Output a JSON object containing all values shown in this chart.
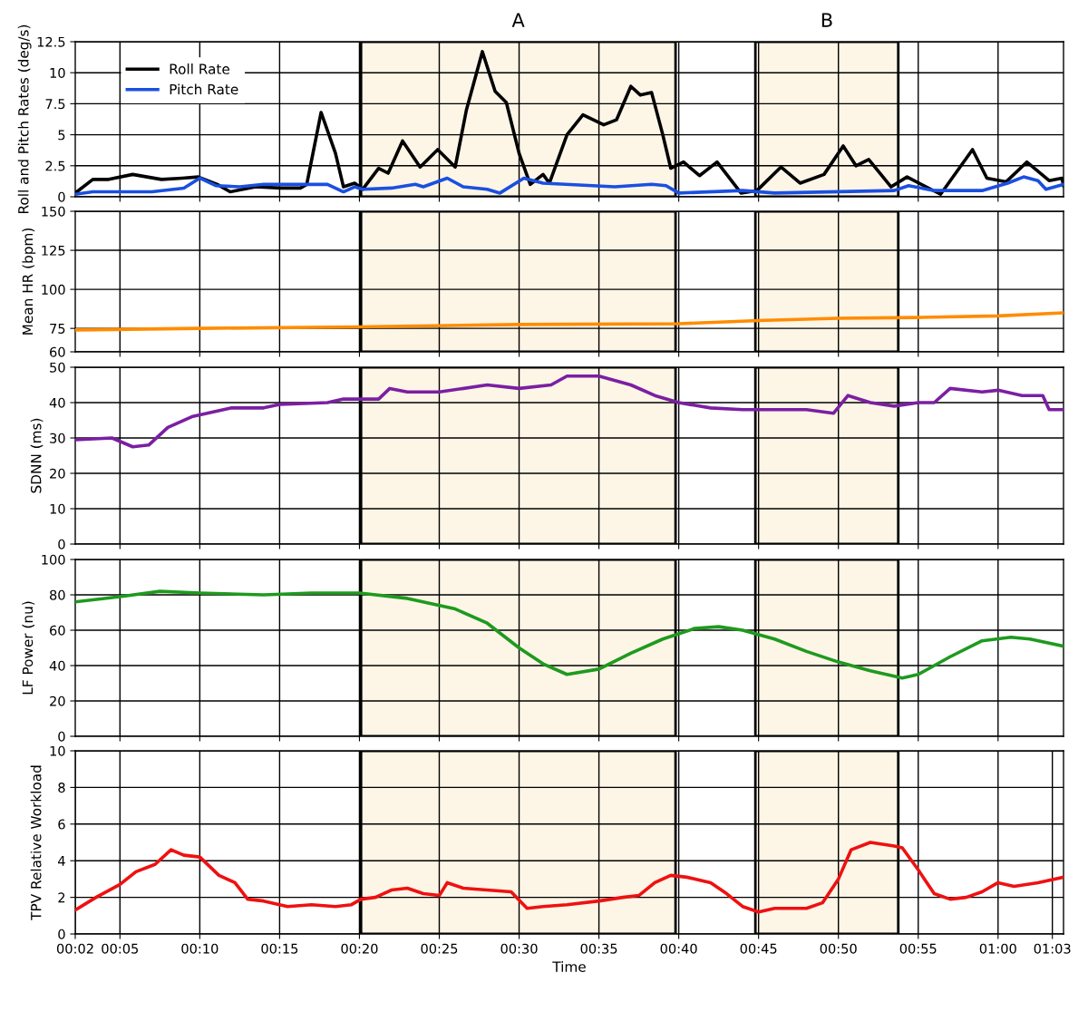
{
  "chart_data": [
    {
      "type": "line",
      "ylabel": "Roll and Pitch Rates (deg/s)",
      "xlim": [
        2.2,
        64.1
      ],
      "xticks": [
        5,
        10,
        15,
        20,
        25,
        30,
        35,
        40,
        45,
        50,
        55,
        60
      ],
      "ylim": [
        0,
        12.5
      ],
      "yticks": [
        0,
        2.5,
        5,
        7.5,
        10,
        12.5
      ],
      "tick_labels": "y",
      "grid": true,
      "legend": "top left",
      "line_style": "solid",
      "marker": "none",
      "bands": [
        {
          "axis": "x",
          "from": 20.1,
          "to": 39.8,
          "label": "A",
          "color": "#fdf5e6"
        },
        {
          "axis": "x",
          "from": 44.8,
          "to": 53.75,
          "label": "B",
          "color": "#fdf5e6"
        }
      ],
      "series": [
        {
          "name": "Roll Rate",
          "color": "#000000",
          "x": [
            2.2,
            3.3,
            4.3,
            5.8,
            7.6,
            8.9,
            9.9,
            11.1,
            11.9,
            13.5,
            15.1,
            16.3,
            16.7,
            17.6,
            18.5,
            19.0,
            19.7,
            20.2,
            21.2,
            21.8,
            22.7,
            23.8,
            24.9,
            26.0,
            26.7,
            27.7,
            28.5,
            29.2,
            30.0,
            30.7,
            31.5,
            31.9,
            33.0,
            34.0,
            35.3,
            36.1,
            37.0,
            37.6,
            38.3,
            39.0,
            39.5,
            40.3,
            41.3,
            42.4,
            43.9,
            44.9,
            46.4,
            47.6,
            49.1,
            50.3,
            51.1,
            51.9,
            53.3,
            54.3,
            56.4,
            58.4,
            59.3,
            60.5,
            61.8,
            63.2,
            64.0,
            64.1
          ],
          "values": [
            0.3,
            1.4,
            1.4,
            1.8,
            1.4,
            1.5,
            1.6,
            1.0,
            0.4,
            0.8,
            0.7,
            0.7,
            1.0,
            6.8,
            3.5,
            0.8,
            1.1,
            0.6,
            2.3,
            1.9,
            4.5,
            2.4,
            3.8,
            2.4,
            7.0,
            11.7,
            8.5,
            7.6,
            3.5,
            1.0,
            1.8,
            1.1,
            5.0,
            6.6,
            5.8,
            6.2,
            8.9,
            8.2,
            8.4,
            5.0,
            2.3,
            2.8,
            1.7,
            2.8,
            0.3,
            0.5,
            2.4,
            1.1,
            1.8,
            4.1,
            2.5,
            3.0,
            0.8,
            1.6,
            0.2,
            3.8,
            1.5,
            1.2,
            2.8,
            1.3,
            1.5,
            0.9
          ]
        },
        {
          "name": "Pitch Rate",
          "color": "#1a4fe0",
          "x": [
            2.2,
            3.3,
            7.0,
            9.0,
            10.0,
            11.0,
            12.5,
            14.0,
            17.0,
            18.0,
            19.0,
            19.7,
            20.2,
            22.0,
            23.5,
            24.0,
            25.5,
            26.5,
            28.0,
            28.8,
            30.3,
            31.5,
            36.0,
            38.3,
            39.2,
            40.0,
            44.0,
            46.0,
            53.5,
            54.4,
            56.0,
            59.0,
            60.6,
            61.6,
            62.5,
            63.0,
            64.1
          ],
          "values": [
            0.2,
            0.4,
            0.4,
            0.7,
            1.5,
            0.9,
            0.8,
            1.0,
            1.0,
            1.0,
            0.4,
            0.8,
            0.6,
            0.7,
            1.0,
            0.8,
            1.5,
            0.8,
            0.6,
            0.3,
            1.5,
            1.1,
            0.8,
            1.0,
            0.9,
            0.3,
            0.5,
            0.3,
            0.5,
            0.9,
            0.5,
            0.5,
            1.1,
            1.6,
            1.3,
            0.6,
            1.0
          ]
        }
      ]
    },
    {
      "type": "line",
      "ylabel": "Mean HR (bpm)",
      "xlim": [
        2.2,
        64.1
      ],
      "xticks": [
        5,
        10,
        15,
        20,
        25,
        30,
        35,
        40,
        45,
        50,
        55,
        60
      ],
      "ylim": [
        60,
        150
      ],
      "yticks": [
        60,
        75,
        100,
        125,
        150
      ],
      "tick_labels": "y",
      "grid": true,
      "line_style": "solid",
      "marker": "none",
      "bands": [
        {
          "axis": "x",
          "from": 20.1,
          "to": 39.8,
          "color": "#fdf5e6"
        },
        {
          "axis": "x",
          "from": 44.8,
          "to": 53.75,
          "color": "#fdf5e6"
        }
      ],
      "series": [
        {
          "color": "#ff8c00",
          "x": [
            2.2,
            10,
            20,
            30,
            40,
            45,
            50,
            55,
            60,
            64.1
          ],
          "values": [
            74,
            75,
            76,
            77.5,
            78,
            80,
            81.5,
            82,
            83,
            85
          ]
        }
      ]
    },
    {
      "type": "line",
      "ylabel": "SDNN (ms)",
      "xlim": [
        2.2,
        64.1
      ],
      "xticks": [
        5,
        10,
        15,
        20,
        25,
        30,
        35,
        40,
        45,
        50,
        55,
        60
      ],
      "ylim": [
        0,
        50
      ],
      "yticks": [
        0,
        10,
        20,
        30,
        40,
        50
      ],
      "tick_labels": "y",
      "grid": true,
      "line_style": "solid",
      "marker": "none",
      "bands": [
        {
          "axis": "x",
          "from": 20.1,
          "to": 39.8,
          "color": "#fdf5e6"
        },
        {
          "axis": "x",
          "from": 44.8,
          "to": 53.75,
          "color": "#fdf5e6"
        }
      ],
      "series": [
        {
          "color": "#7b1fa2",
          "x": [
            2.2,
            4.5,
            5.8,
            6.8,
            8,
            9.5,
            12,
            14,
            15,
            18,
            19,
            20.5,
            21.2,
            21.9,
            23,
            25,
            28,
            30,
            32,
            33,
            35,
            37,
            38.5,
            40,
            42,
            44,
            48,
            49.7,
            50.6,
            52,
            53.5,
            55,
            56,
            57,
            59,
            60,
            61.5,
            62.8,
            63.2,
            64.1
          ],
          "values": [
            29.5,
            30,
            27.5,
            28,
            33,
            36,
            38.5,
            38.5,
            39.5,
            40,
            41,
            41,
            41,
            44,
            43,
            43,
            45,
            44,
            45,
            47.5,
            47.5,
            45,
            42,
            40,
            38.5,
            38,
            38,
            37,
            42,
            40,
            39,
            40,
            40,
            44,
            43,
            43.5,
            42,
            42,
            38,
            38
          ]
        }
      ]
    },
    {
      "type": "line",
      "ylabel": "LF Power (nu)",
      "xlim": [
        2.2,
        64.1
      ],
      "xticks": [
        5,
        10,
        15,
        20,
        25,
        30,
        35,
        40,
        45,
        50,
        55,
        60
      ],
      "ylim": [
        0,
        100
      ],
      "yticks": [
        0,
        20,
        40,
        60,
        80,
        100
      ],
      "tick_labels": "y",
      "grid": true,
      "line_style": "solid",
      "marker": "none",
      "bands": [
        {
          "axis": "x",
          "from": 20.1,
          "to": 39.8,
          "color": "#fdf5e6"
        },
        {
          "axis": "x",
          "from": 44.8,
          "to": 53.75,
          "color": "#fdf5e6"
        }
      ],
      "series": [
        {
          "color": "#1e9a1e",
          "x": [
            2.2,
            5,
            7.5,
            10,
            14,
            17,
            20,
            23,
            26,
            28,
            30,
            31.5,
            33,
            35,
            37,
            39,
            41,
            42.5,
            44,
            46,
            48,
            50,
            52,
            54,
            55,
            57,
            59,
            60.8,
            62,
            64.1
          ],
          "values": [
            76,
            79,
            82,
            81,
            80,
            81,
            81,
            78,
            72,
            64,
            50,
            41,
            35,
            38,
            47,
            55,
            61,
            62,
            60,
            55,
            48,
            42,
            37,
            33,
            35,
            45,
            54,
            56,
            55,
            51
          ]
        }
      ]
    },
    {
      "type": "line",
      "ylabel": "TPV Relative Workload",
      "xlabel": "Time",
      "xlim": [
        2.2,
        64.1
      ],
      "xticks": [
        {
          "value": 2.2,
          "label": "00:02"
        },
        {
          "value": 5,
          "label": "00:05"
        },
        {
          "value": 10,
          "label": "00:10"
        },
        {
          "value": 15,
          "label": "00:15"
        },
        {
          "value": 20,
          "label": "00:20"
        },
        {
          "value": 25,
          "label": "00:25"
        },
        {
          "value": 30,
          "label": "00:30"
        },
        {
          "value": 35,
          "label": "00:35"
        },
        {
          "value": 40,
          "label": "00:40"
        },
        {
          "value": 45,
          "label": "00:45"
        },
        {
          "value": 50,
          "label": "00:50"
        },
        {
          "value": 55,
          "label": "00:55"
        },
        {
          "value": 60,
          "label": "01:00"
        },
        {
          "value": 63.4,
          "label": "01:03"
        }
      ],
      "ylim": [
        0,
        10
      ],
      "yticks": [
        0,
        2,
        4,
        6,
        8,
        10
      ],
      "grid": true,
      "line_style": "solid",
      "marker": "none",
      "bands": [
        {
          "axis": "x",
          "from": 20.1,
          "to": 39.8,
          "color": "#fdf5e6"
        },
        {
          "axis": "x",
          "from": 44.8,
          "to": 53.75,
          "color": "#fdf5e6"
        }
      ],
      "series": [
        {
          "color": "#ee1111",
          "x": [
            2.2,
            3.5,
            5,
            6,
            7.2,
            8.2,
            9,
            10,
            11.2,
            12.2,
            13,
            14,
            15.5,
            17,
            18.5,
            19.5,
            20.1,
            21,
            22,
            23,
            24,
            25,
            25.5,
            26.5,
            28,
            29.5,
            30.5,
            31.5,
            33,
            35,
            36.5,
            37.5,
            38.5,
            39.5,
            40.5,
            42,
            43,
            44,
            45,
            46,
            47,
            48,
            49,
            50,
            50.8,
            52,
            53.5,
            54,
            55,
            56,
            57,
            58,
            59,
            60,
            61,
            62.5,
            64.1
          ],
          "values": [
            1.3,
            2.0,
            2.7,
            3.4,
            3.8,
            4.6,
            4.3,
            4.2,
            3.2,
            2.8,
            1.9,
            1.8,
            1.5,
            1.6,
            1.5,
            1.6,
            1.9,
            2.0,
            2.4,
            2.5,
            2.2,
            2.1,
            2.8,
            2.5,
            2.4,
            2.3,
            1.4,
            1.5,
            1.6,
            1.8,
            2.0,
            2.1,
            2.8,
            3.2,
            3.1,
            2.8,
            2.2,
            1.5,
            1.2,
            1.4,
            1.4,
            1.4,
            1.7,
            3.0,
            4.6,
            5.0,
            4.8,
            4.7,
            3.5,
            2.2,
            1.9,
            2.0,
            2.3,
            2.8,
            2.6,
            2.8,
            3.1
          ]
        }
      ]
    }
  ]
}
